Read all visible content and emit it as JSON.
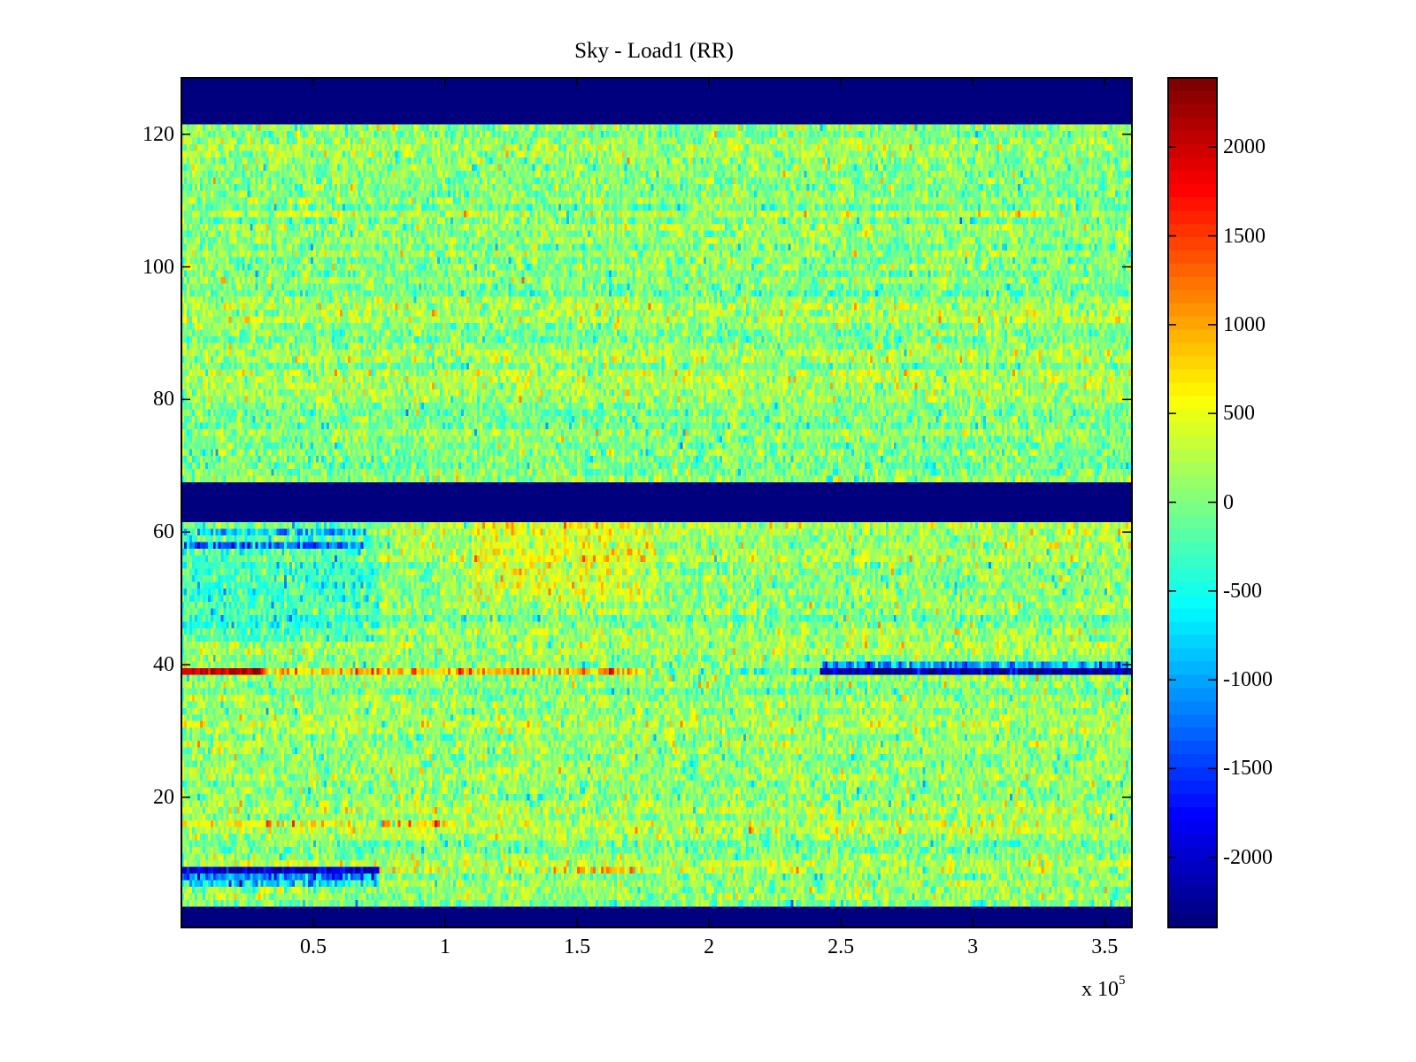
{
  "chart_data": {
    "type": "heatmap",
    "title": "Sky - Load1 (RR)",
    "xlabel": "",
    "ylabel": "",
    "x_multiplier": "x 10",
    "x_multiplier_exp": "5",
    "xlim": [
      0,
      3.6
    ],
    "ylim": [
      0.5,
      128.5
    ],
    "x_ticks": [
      "0.5",
      "1",
      "1.5",
      "2",
      "2.5",
      "3",
      "3.5"
    ],
    "x_tick_values": [
      0.5,
      1,
      1.5,
      2,
      2.5,
      3,
      3.5
    ],
    "y_ticks": [
      "20",
      "40",
      "60",
      "80",
      "100",
      "120"
    ],
    "y_tick_values": [
      20,
      40,
      60,
      80,
      100,
      120
    ],
    "colormap": "jet",
    "clim": [
      -2390,
      2390
    ],
    "colorbar_ticks": [
      "2000",
      "1500",
      "1000",
      "500",
      "0",
      "-500",
      "-1000",
      "-1500",
      "-2000"
    ],
    "colorbar_tick_values": [
      2000,
      1500,
      1000,
      500,
      0,
      -500,
      -1000,
      -1500,
      -2000
    ],
    "rows": 128,
    "columns": 360,
    "masked_rows": [
      [
        1,
        3
      ],
      [
        62,
        67
      ],
      [
        122,
        128
      ]
    ],
    "masked_value": -2390,
    "noise_std": 300,
    "features": [
      {
        "row": 39,
        "x_from": 0,
        "x_to": 0.3,
        "value": 2000
      },
      {
        "row": 39,
        "x_from": 0.3,
        "x_to": 1.75,
        "value": 900
      },
      {
        "row": 39,
        "x_from": 1.75,
        "x_to": 2.42,
        "value": -100
      },
      {
        "row": 39,
        "x_from": 2.42,
        "x_to": 3.6,
        "value": -2200
      },
      {
        "row": 40,
        "x_from": 2.42,
        "x_to": 3.6,
        "value": -1000
      },
      {
        "row": 9,
        "x_from": 0,
        "x_to": 0.75,
        "value": -2000
      },
      {
        "row": 9,
        "x_from": 1.5,
        "x_to": 1.75,
        "value": 900
      },
      {
        "row": 9,
        "x_from": 0.75,
        "x_to": 1.5,
        "value": 400
      },
      {
        "row": 8,
        "x_from": 0,
        "x_to": 0.75,
        "value": -1200
      },
      {
        "row": 7,
        "x_from": 0,
        "x_to": 0.75,
        "value": -700
      },
      {
        "row": 16,
        "x_from": 0,
        "x_to": 1.0,
        "value": 600
      },
      {
        "row": 58,
        "x_from": 0,
        "x_to": 0.7,
        "value": -1200
      },
      {
        "row": 60,
        "x_from": 0,
        "x_to": 0.7,
        "value": -800
      }
    ],
    "region_bias": [
      {
        "rows": [
          68,
          121
        ],
        "x_from": 0,
        "x_to": 3.6,
        "value": 80
      },
      {
        "rows": [
          4,
          61
        ],
        "x_from": 0,
        "x_to": 3.6,
        "value": 100
      },
      {
        "rows": [
          44,
          61
        ],
        "x_from": 0,
        "x_to": 0.75,
        "value": -350
      },
      {
        "rows": [
          50,
          61
        ],
        "x_from": 1.1,
        "x_to": 1.8,
        "value": 300
      }
    ]
  }
}
